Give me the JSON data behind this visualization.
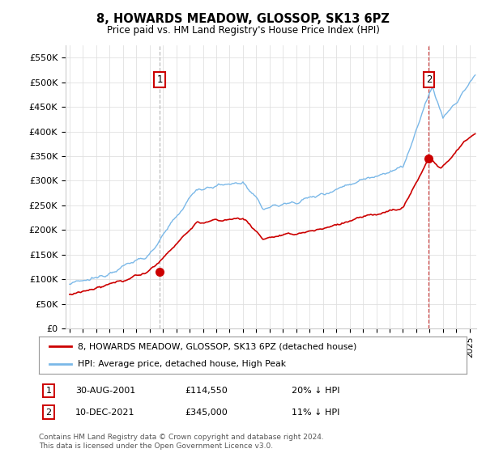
{
  "title": "8, HOWARDS MEADOW, GLOSSOP, SK13 6PZ",
  "subtitle": "Price paid vs. HM Land Registry's House Price Index (HPI)",
  "ylim": [
    0,
    575000
  ],
  "yticks": [
    0,
    50000,
    100000,
    150000,
    200000,
    250000,
    300000,
    350000,
    400000,
    450000,
    500000,
    550000
  ],
  "sale1": {
    "date_num": 2001.75,
    "price": 114550,
    "label": "1"
  },
  "sale2": {
    "date_num": 2021.94,
    "price": 345000,
    "label": "2"
  },
  "legend_red": "8, HOWARDS MEADOW, GLOSSOP, SK13 6PZ (detached house)",
  "legend_blue": "HPI: Average price, detached house, High Peak",
  "footnote": "Contains HM Land Registry data © Crown copyright and database right 2024.\nThis data is licensed under the Open Government Licence v3.0.",
  "hpi_color": "#7ab8e8",
  "sale_color": "#cc0000",
  "dashed_color_1": "#bbbbbb",
  "dashed_color_2": "#cc4444",
  "grid_color": "#e0e0e0",
  "background_color": "#ffffff",
  "label_box_color": "#cc0000"
}
